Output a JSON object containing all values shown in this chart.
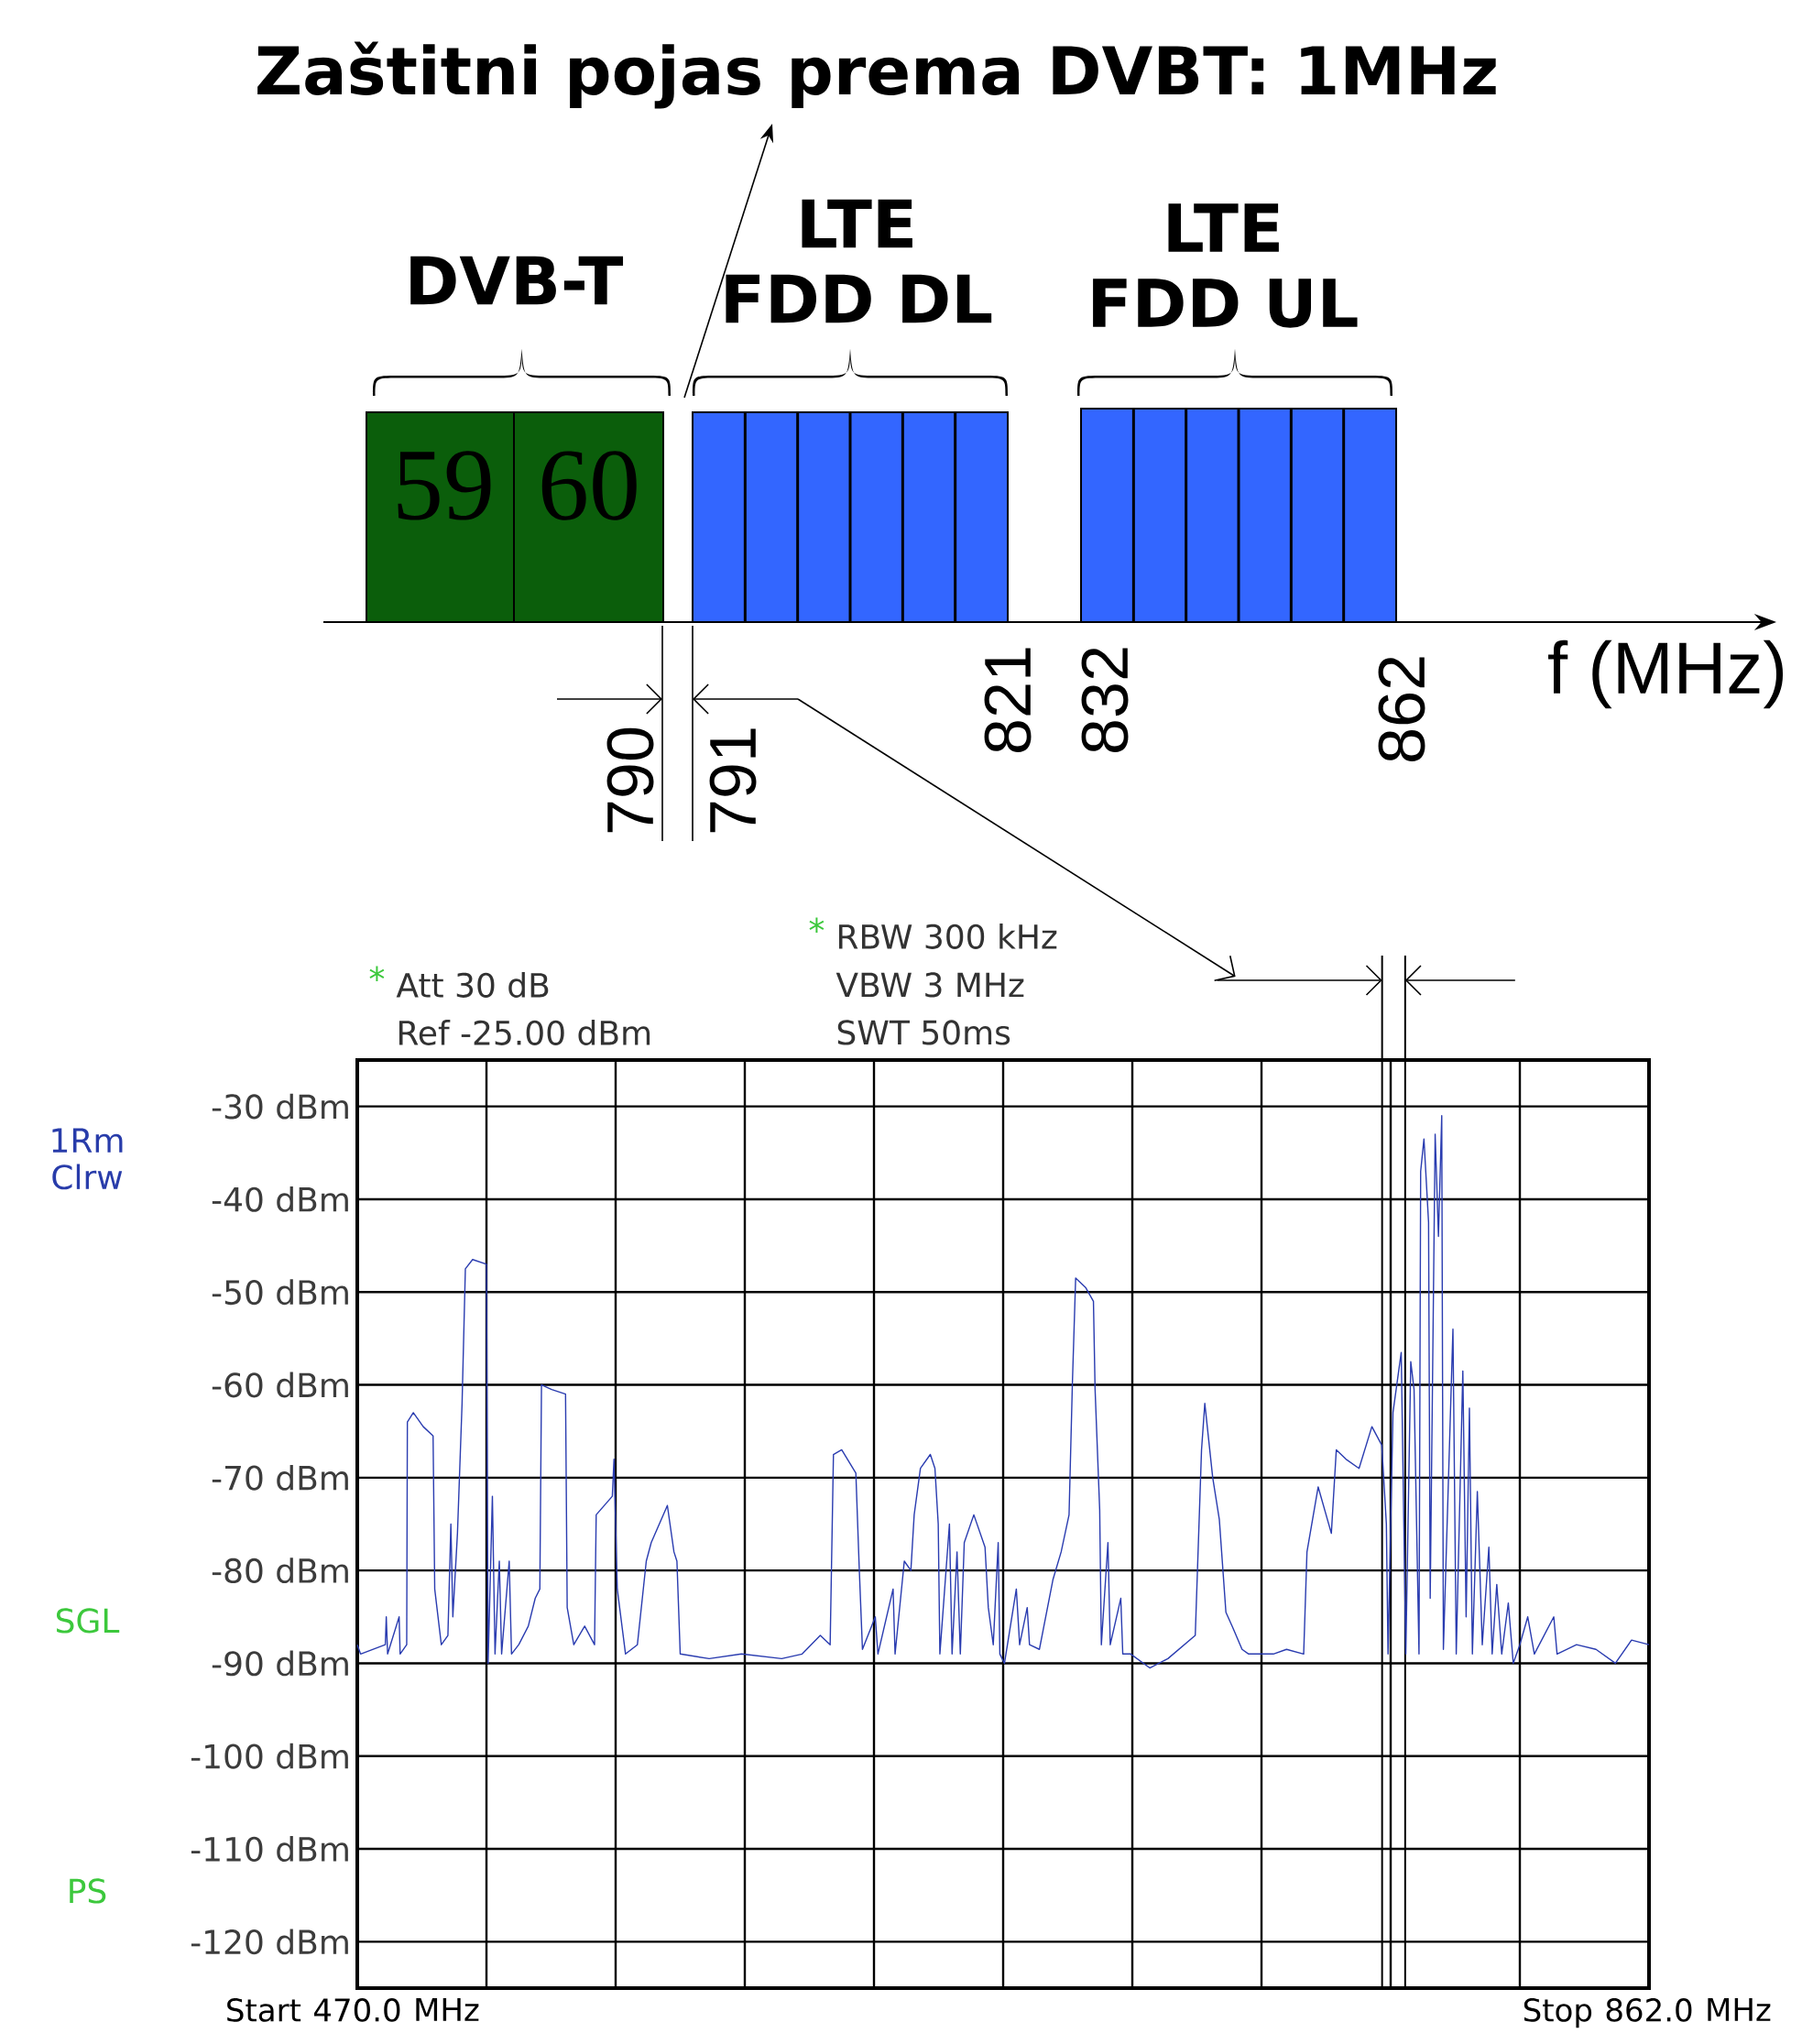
{
  "chart_data": [
    {
      "type": "other",
      "title": "Zaštitni pojas prema DVBT: 1MHz",
      "xlabel": "f (MHz)",
      "annotations": [
        "DVB-T",
        "LTE FDD DL",
        "LTE FDD UL",
        "59",
        "60",
        "790",
        "791",
        "821",
        "832",
        "862"
      ]
    },
    {
      "type": "line",
      "series": [
        {
          "color": "#2a3cb0",
          "x": [
            470,
            471,
            478.5,
            478.8,
            479.2,
            482.7,
            483,
            485,
            485.2,
            487,
            490,
            493,
            493.5,
            495.5,
            497.5,
            498.4,
            499,
            500.4,
            501.8,
            502.8,
            505,
            509.2,
            509.7,
            511,
            511.8,
            513.1,
            513.8,
            516.1,
            516.8,
            519,
            521.9,
            524,
            525.4,
            525.9,
            529,
            533.2,
            533.7,
            535.7,
            539,
            542,
            542.5,
            547.4,
            547.9,
            548.9,
            551.4,
            555,
            557.7,
            559.2,
            564.1,
            566.1,
            567,
            568,
            576.8,
            586.6,
            598.8,
            605,
            610.5,
            613.5,
            614.5,
            617,
            621.3,
            622.3,
            623.3,
            627.2,
            628,
            632.6,
            633.2,
            636,
            638,
            639,
            640.9,
            643.9,
            645.3,
            646.3,
            646.8,
            649.7,
            650.5,
            652,
            653,
            654.2,
            657.1,
            660.5,
            661.5,
            663,
            664.5,
            665,
            666.4,
            670,
            671,
            673.3,
            674,
            677,
            681.1,
            683.6,
            686,
            687,
            688,
            691,
            693.4,
            693.9,
            695.3,
            695.8,
            697.8,
            698.5,
            701.7,
            702.3,
            704.7,
            710.5,
            716,
            724.3,
            726.2,
            727.2,
            729.6,
            731.6,
            733.6,
            735.5,
            738.5,
            740.5,
            748,
            752,
            757.2,
            758.2,
            761.6,
            765.6,
            767.1,
            770,
            774,
            777.9,
            780.9,
            782.3,
            782.8,
            784.3,
            786.8,
            788.2,
            789.7,
            790.7,
            792.2,
            792.7,
            793.7,
            795.1,
            795.6,
            797.1,
            798.1,
            799.1,
            799.6,
            802.5,
            803.5,
            805.5,
            806.5,
            807.5,
            808.4,
            809.9,
            811.4,
            813.4,
            814.4,
            815.8,
            817.3,
            819.3,
            820.8,
            822.8,
            825.2,
            827.2,
            833.1,
            834.1,
            840,
            845.9,
            851.8,
            856.7,
            862
          ],
          "values": [
            -88,
            -89,
            -88,
            -85,
            -89,
            -85,
            -89,
            -88,
            -64,
            -63,
            -64.5,
            -65.5,
            -82,
            -88,
            -87,
            -75,
            -85,
            -76,
            -62,
            -47.5,
            -46.5,
            -47,
            -90,
            -72,
            -89,
            -79,
            -89,
            -79,
            -89,
            -88,
            -86,
            -83,
            -82,
            -60,
            -60.5,
            -61,
            -84,
            -88,
            -86,
            -88,
            -74,
            -72,
            -68,
            -82,
            -89,
            -88,
            -79,
            -77,
            -73,
            -78,
            -79,
            -89,
            -89.5,
            -89,
            -89.5,
            -89,
            -87,
            -88,
            -67.5,
            -67,
            -69.5,
            -79.5,
            -88.5,
            -85,
            -89,
            -82,
            -89,
            -79,
            -80,
            -74,
            -69,
            -67.5,
            -69,
            -75,
            -89,
            -75,
            -89,
            -78,
            -89,
            -77,
            -74,
            -77.5,
            -84,
            -88,
            -77,
            -89,
            -90,
            -82,
            -88,
            -84,
            -88,
            -88.5,
            -81,
            -78,
            -74,
            -60,
            -48.5,
            -49.5,
            -51,
            -60.5,
            -73.5,
            -88,
            -77,
            -88,
            -83,
            -89,
            -89,
            -90.5,
            -89.5,
            -87,
            -67,
            -62,
            -70,
            -74.5,
            -84.5,
            -86,
            -88.5,
            -89,
            -89,
            -88.5,
            -89,
            -78,
            -71,
            -76,
            -67,
            -68,
            -69,
            -64.5,
            -66.5,
            -75,
            -89,
            -63,
            -56.5,
            -89,
            -57.5,
            -60.5,
            -89,
            -37,
            -33.5,
            -42.5,
            -83,
            -33,
            -44,
            -31,
            -88.5,
            -54,
            -89,
            -58.5,
            -85,
            -62.5,
            -89,
            -71.5,
            -88,
            -77.5,
            -89,
            -81.5,
            -89,
            -83.5,
            -90,
            -88,
            -85,
            -89,
            -85,
            -89,
            -88,
            -88.5,
            -90,
            -87.5,
            -88
          ]
        }
      ],
      "xlim": [
        470,
        862
      ],
      "ylim": [
        -125,
        -25
      ],
      "xticks": [
        {
          "value": 470,
          "label": "470.0"
        },
        {
          "value": 509.2,
          "label": null
        },
        {
          "value": 548.4,
          "label": null
        },
        {
          "value": 587.6,
          "label": null
        },
        {
          "value": 626.8,
          "label": null
        },
        {
          "value": 666.0,
          "label": null
        },
        {
          "value": 705.2,
          "label": null
        },
        {
          "value": 744.4,
          "label": null
        },
        {
          "value": 783.6,
          "label": null
        },
        {
          "value": 822.8,
          "label": null
        },
        {
          "value": 862,
          "label": "862.0"
        }
      ],
      "yticks": [
        {
          "value": -30,
          "label": "-30 dBm"
        },
        {
          "value": -40,
          "label": "-40 dBm"
        },
        {
          "value": -50,
          "label": "-50 dBm"
        },
        {
          "value": -60,
          "label": "-60 dBm"
        },
        {
          "value": -70,
          "label": "-70 dBm"
        },
        {
          "value": -80,
          "label": "-80 dBm"
        },
        {
          "value": -90,
          "label": "-90 dBm"
        },
        {
          "value": -100,
          "label": "-100 dBm"
        },
        {
          "value": -110,
          "label": "-110 dBm"
        },
        {
          "value": -120,
          "label": "-120 dBm"
        }
      ],
      "grid": true,
      "ref_lines": [
        {
          "axis": "x",
          "value": 781,
          "color": "#000000"
        },
        {
          "axis": "x",
          "value": 788,
          "color": "#000000"
        }
      ],
      "annotations": [
        "*",
        "Att 30 dB",
        "Ref -25.00 dBm",
        "*",
        "RBW 300 kHz",
        "VBW 3 MHz",
        "SWT 50ms",
        "1Rm Clrw",
        "SGL",
        "PS",
        "Start",
        "MHz",
        "Stop",
        "MHz"
      ]
    }
  ]
}
